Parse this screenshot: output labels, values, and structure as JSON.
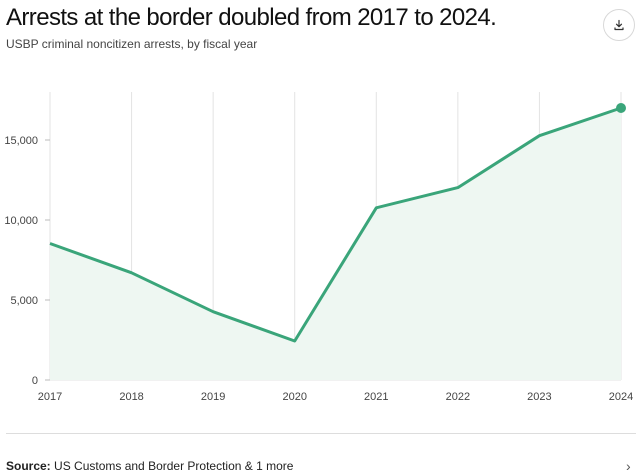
{
  "header": {
    "title": "Arrests at the border doubled from 2017 to 2024.",
    "subtitle": "USBP criminal noncitizen arrests, by fiscal year",
    "download_icon": "download-icon"
  },
  "footer": {
    "source_label": "Source:",
    "source_text": "US Customs and Border Protection & 1 more",
    "expand_icon": "chevron-right-icon"
  },
  "colors": {
    "line": "#3aa57a",
    "area": "#eef7f2",
    "grid": "#e3e3e3"
  },
  "chart_data": {
    "type": "area",
    "title": "Arrests at the border doubled from 2017 to 2024.",
    "subtitle": "USBP criminal noncitizen arrests, by fiscal year",
    "x": [
      "2017",
      "2018",
      "2019",
      "2020",
      "2021",
      "2022",
      "2023",
      "2024"
    ],
    "series": [
      {
        "name": "USBP criminal noncitizen arrests",
        "values": [
          8531,
          6698,
          4269,
          2438,
          10763,
          12028,
          15267,
          17000
        ]
      }
    ],
    "ylim": [
      0,
      18000
    ],
    "yticks": [
      0,
      5000,
      10000,
      15000
    ],
    "ytick_labels": [
      "0",
      "5,000",
      "10,000",
      "15,000"
    ],
    "xlabel": "",
    "ylabel": "",
    "grid": true,
    "legend": "none",
    "highlight_last_point": true
  }
}
